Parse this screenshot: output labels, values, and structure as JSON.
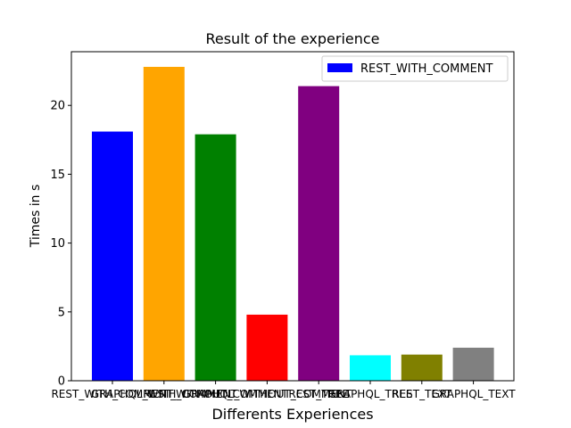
{
  "chart_data": {
    "type": "bar",
    "title": "Result of the experience",
    "xlabel": "Differents Experiences",
    "ylabel": "Times in s",
    "ylim": [
      0,
      23.9
    ],
    "yticks": [
      0,
      5,
      10,
      15,
      20
    ],
    "grid": false,
    "legend": {
      "placement": "top-right",
      "entries": [
        {
          "label": "REST_WITH_COMMENT",
          "color": "#0000ff"
        }
      ]
    },
    "categories": [
      "REST_WITH_COMMENT",
      "GRAPHQL_WITH_COMMENT",
      "REST_WITHOUT_COMMENT",
      "GRAPHQL_WITHOUT_COMMENT",
      "REST_TREE",
      "GRAPHQL_TREE",
      "REST_TEXT",
      "GRAPHQL_TEXT"
    ],
    "values": [
      18.1,
      22.8,
      17.9,
      4.8,
      21.4,
      1.85,
      1.9,
      2.4
    ],
    "colors": [
      "#0000ff",
      "#ffa500",
      "#008000",
      "#ff0000",
      "#800080",
      "#00ffff",
      "#808000",
      "#808080"
    ]
  }
}
